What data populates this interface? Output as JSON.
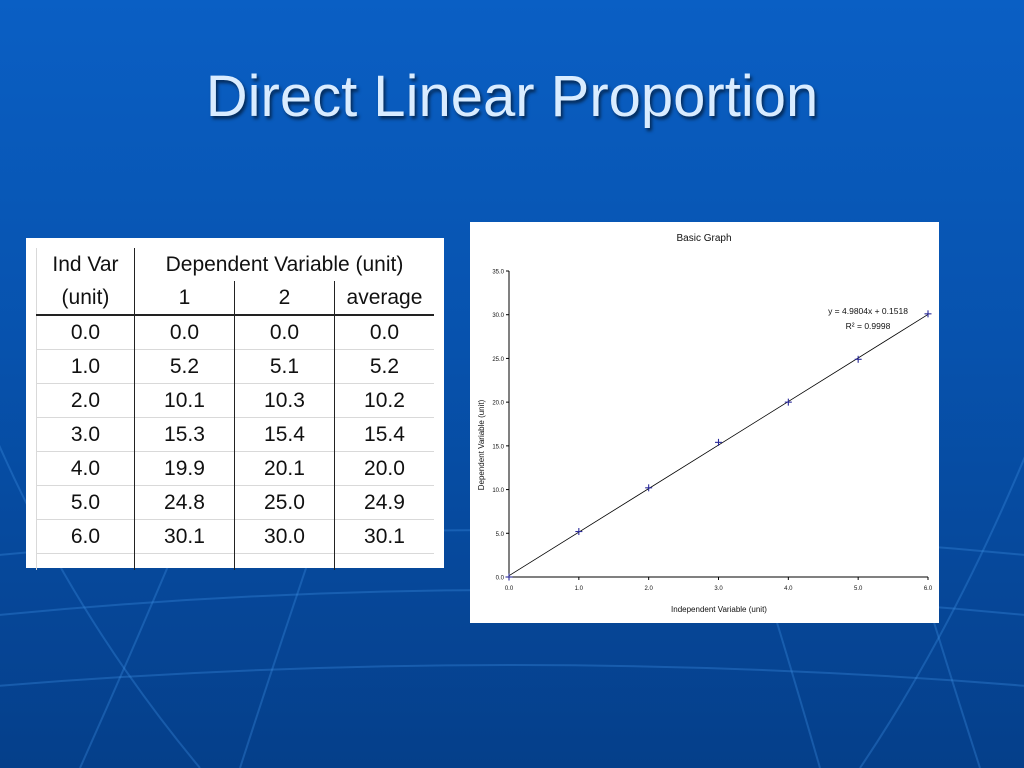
{
  "slide": {
    "title": "Direct Linear Proportion"
  },
  "table": {
    "header_row1": [
      "Ind Var",
      "Dependent Variable (unit)"
    ],
    "header_row2": [
      "(unit)",
      "1",
      "2",
      "average"
    ],
    "rows": [
      [
        "0.0",
        "0.0",
        "0.0",
        "0.0"
      ],
      [
        "1.0",
        "5.2",
        "5.1",
        "5.2"
      ],
      [
        "2.0",
        "10.1",
        "10.3",
        "10.2"
      ],
      [
        "3.0",
        "15.3",
        "15.4",
        "15.4"
      ],
      [
        "4.0",
        "19.9",
        "20.1",
        "20.0"
      ],
      [
        "5.0",
        "24.8",
        "25.0",
        "24.9"
      ],
      [
        "6.0",
        "30.1",
        "30.0",
        "30.1"
      ]
    ]
  },
  "chart_data": {
    "type": "scatter",
    "title": "Basic Graph",
    "xlabel": "Independent Variable (unit)",
    "ylabel": "Dependent Variable (unit)",
    "xlim": [
      0,
      6
    ],
    "ylim": [
      0,
      35
    ],
    "x_ticks": [
      "0.0",
      "1.0",
      "2.0",
      "3.0",
      "4.0",
      "5.0",
      "6.0"
    ],
    "y_ticks": [
      "0.0",
      "5.0",
      "10.0",
      "15.0",
      "20.0",
      "25.0",
      "30.0",
      "35.0"
    ],
    "grid": false,
    "series": [
      {
        "x": [
          0,
          1,
          2,
          3,
          4,
          5,
          6
        ],
        "y": [
          0.0,
          5.2,
          10.2,
          15.4,
          20.0,
          24.9,
          30.1
        ]
      }
    ],
    "trendline": {
      "slope": 4.9804,
      "intercept": 0.1518
    },
    "equation": "y = 4.9804x + 0.1518",
    "r_squared": "R² = 0.9998",
    "colors": {
      "marker": "#2a2a9a",
      "line": "#000000"
    }
  }
}
